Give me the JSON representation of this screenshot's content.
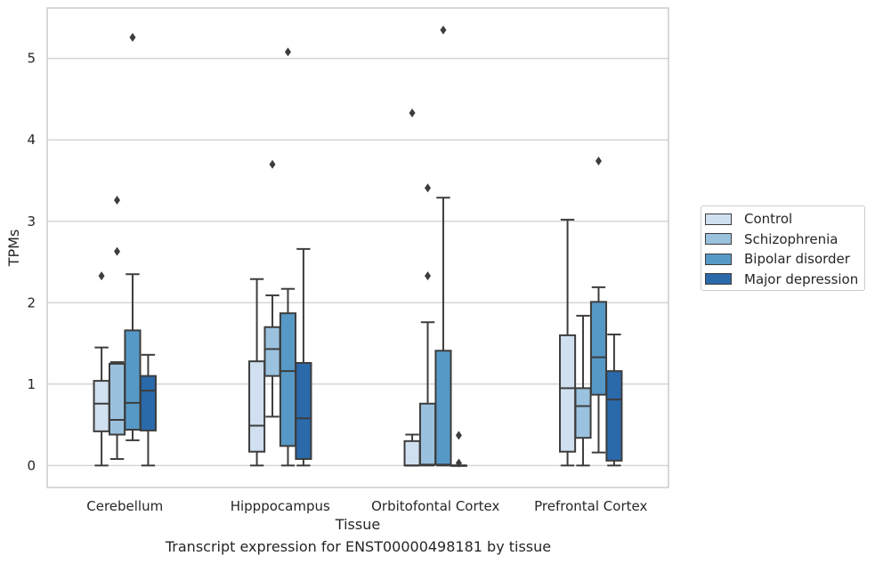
{
  "chart_data": {
    "type": "box",
    "title": "",
    "caption": "Transcript expression for ENST00000498181 by tissue",
    "xlabel": "Tissue",
    "ylabel": "TPMs",
    "ylim": [
      -0.27,
      5.62
    ],
    "yticks": [
      0,
      1,
      2,
      3,
      4,
      5
    ],
    "grid": "horizontal",
    "legend_position": "right",
    "categories": [
      "Cerebellum",
      "Hipppocampus",
      "Orbitofontal Cortex",
      "Prefrontal Cortex"
    ],
    "series": [
      {
        "name": "Control",
        "color": "#d0e0f0",
        "boxes": [
          {
            "whislo": 0.0,
            "q1": 0.42,
            "med": 0.76,
            "q3": 1.04,
            "whishi": 1.45,
            "fliers": [
              2.33
            ]
          },
          {
            "whislo": 0.0,
            "q1": 0.17,
            "med": 0.49,
            "q3": 1.28,
            "whishi": 2.29,
            "fliers": []
          },
          {
            "whislo": 0.0,
            "q1": 0.0,
            "med": 0.0,
            "q3": 0.3,
            "whishi": 0.38,
            "fliers": [
              4.33
            ]
          },
          {
            "whislo": 0.0,
            "q1": 0.17,
            "med": 0.95,
            "q3": 1.6,
            "whishi": 3.02,
            "fliers": []
          }
        ]
      },
      {
        "name": "Schizophrenia",
        "color": "#9ac2de",
        "boxes": [
          {
            "whislo": 0.08,
            "q1": 0.38,
            "med": 0.56,
            "q3": 1.25,
            "whishi": 1.27,
            "fliers": [
              2.63,
              3.26
            ]
          },
          {
            "whislo": 0.6,
            "q1": 1.1,
            "med": 1.43,
            "q3": 1.7,
            "whishi": 2.09,
            "fliers": [
              3.7
            ]
          },
          {
            "whislo": 0.0,
            "q1": 0.01,
            "med": 0.01,
            "q3": 0.76,
            "whishi": 1.76,
            "fliers": [
              2.33,
              3.41
            ]
          },
          {
            "whislo": 0.0,
            "q1": 0.34,
            "med": 0.73,
            "q3": 0.95,
            "whishi": 1.84,
            "fliers": []
          }
        ]
      },
      {
        "name": "Bipolar disorder",
        "color": "#5799c6",
        "boxes": [
          {
            "whislo": 0.31,
            "q1": 0.44,
            "med": 0.77,
            "q3": 1.66,
            "whishi": 2.35,
            "fliers": [
              5.26
            ]
          },
          {
            "whislo": 0.0,
            "q1": 0.24,
            "med": 1.16,
            "q3": 1.87,
            "whishi": 2.17,
            "fliers": [
              5.08
            ]
          },
          {
            "whislo": 0.0,
            "q1": 0.01,
            "med": 0.01,
            "q3": 1.41,
            "whishi": 3.29,
            "fliers": [
              5.35
            ]
          },
          {
            "whislo": 0.16,
            "q1": 0.87,
            "med": 1.33,
            "q3": 2.01,
            "whishi": 2.19,
            "fliers": [
              3.74
            ]
          }
        ]
      },
      {
        "name": "Major depression",
        "color": "#2a69aa",
        "boxes": [
          {
            "whislo": 0.0,
            "q1": 0.43,
            "med": 0.92,
            "q3": 1.1,
            "whishi": 1.36,
            "fliers": []
          },
          {
            "whislo": 0.0,
            "q1": 0.08,
            "med": 0.58,
            "q3": 1.26,
            "whishi": 2.66,
            "fliers": []
          },
          {
            "whislo": 0.0,
            "q1": 0.0,
            "med": 0.0,
            "q3": 0.0,
            "whishi": 0.0,
            "fliers": [
              0.03,
              0.37
            ]
          },
          {
            "whislo": 0.0,
            "q1": 0.06,
            "med": 0.81,
            "q3": 1.16,
            "whishi": 1.61,
            "fliers": []
          }
        ]
      }
    ]
  }
}
